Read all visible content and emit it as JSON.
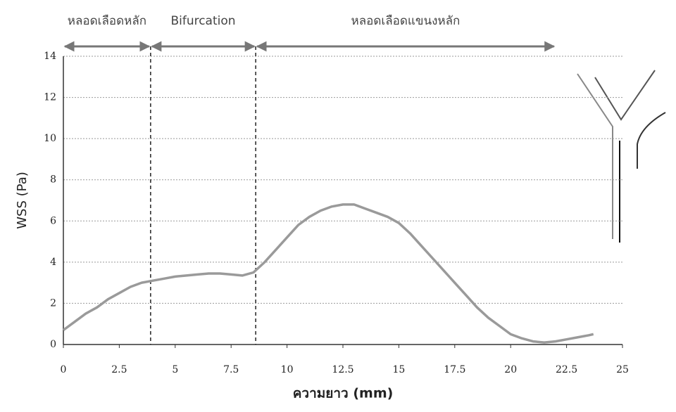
{
  "chart_data": {
    "type": "line",
    "x_label": "ความยาว (mm)",
    "y_label": "WSS (Pa)",
    "x": [
      0,
      0.5,
      1,
      1.5,
      2,
      2.5,
      3,
      3.5,
      4,
      4.5,
      5,
      5.5,
      6,
      6.5,
      7,
      7.5,
      8,
      8.5,
      9,
      9.5,
      10,
      10.5,
      11,
      11.5,
      12,
      12.5,
      13,
      13.5,
      14,
      14.5,
      15,
      15.5,
      16,
      16.5,
      17,
      17.5,
      18,
      18.5,
      19,
      19.5,
      20,
      20.5,
      21,
      21.5,
      22,
      22.5,
      23,
      23.5,
      23.7
    ],
    "series": [
      {
        "color": "#9a9a9a",
        "values": [
          0.7,
          1.1,
          1.5,
          1.8,
          2.2,
          2.5,
          2.8,
          3.0,
          3.1,
          3.2,
          3.3,
          3.35,
          3.4,
          3.45,
          3.45,
          3.4,
          3.35,
          3.5,
          4.0,
          4.6,
          5.2,
          5.8,
          6.2,
          6.5,
          6.7,
          6.8,
          6.8,
          6.6,
          6.4,
          6.2,
          5.9,
          5.4,
          4.8,
          4.2,
          3.6,
          3.0,
          2.4,
          1.8,
          1.3,
          0.9,
          0.5,
          0.3,
          0.15,
          0.1,
          0.15,
          0.25,
          0.35,
          0.45,
          0.5
        ]
      }
    ],
    "xlim": [
      0,
      25
    ],
    "xticks": [
      0,
      2.5,
      5,
      7.5,
      10,
      12.5,
      15,
      17.5,
      20,
      22.5,
      25
    ],
    "ylim": [
      0,
      14
    ],
    "yticks": [
      0,
      2,
      4,
      6,
      8,
      10,
      12,
      14
    ],
    "grid": true,
    "regions": [
      {
        "label": "หลอดเลือดหลัก",
        "start": 0,
        "end": 3.9
      },
      {
        "label": "Bifurcation",
        "start": 3.9,
        "end": 8.6
      },
      {
        "label": "หลอดเลือดแขนงหลัก",
        "start": 8.6,
        "end": 22.0
      }
    ]
  }
}
